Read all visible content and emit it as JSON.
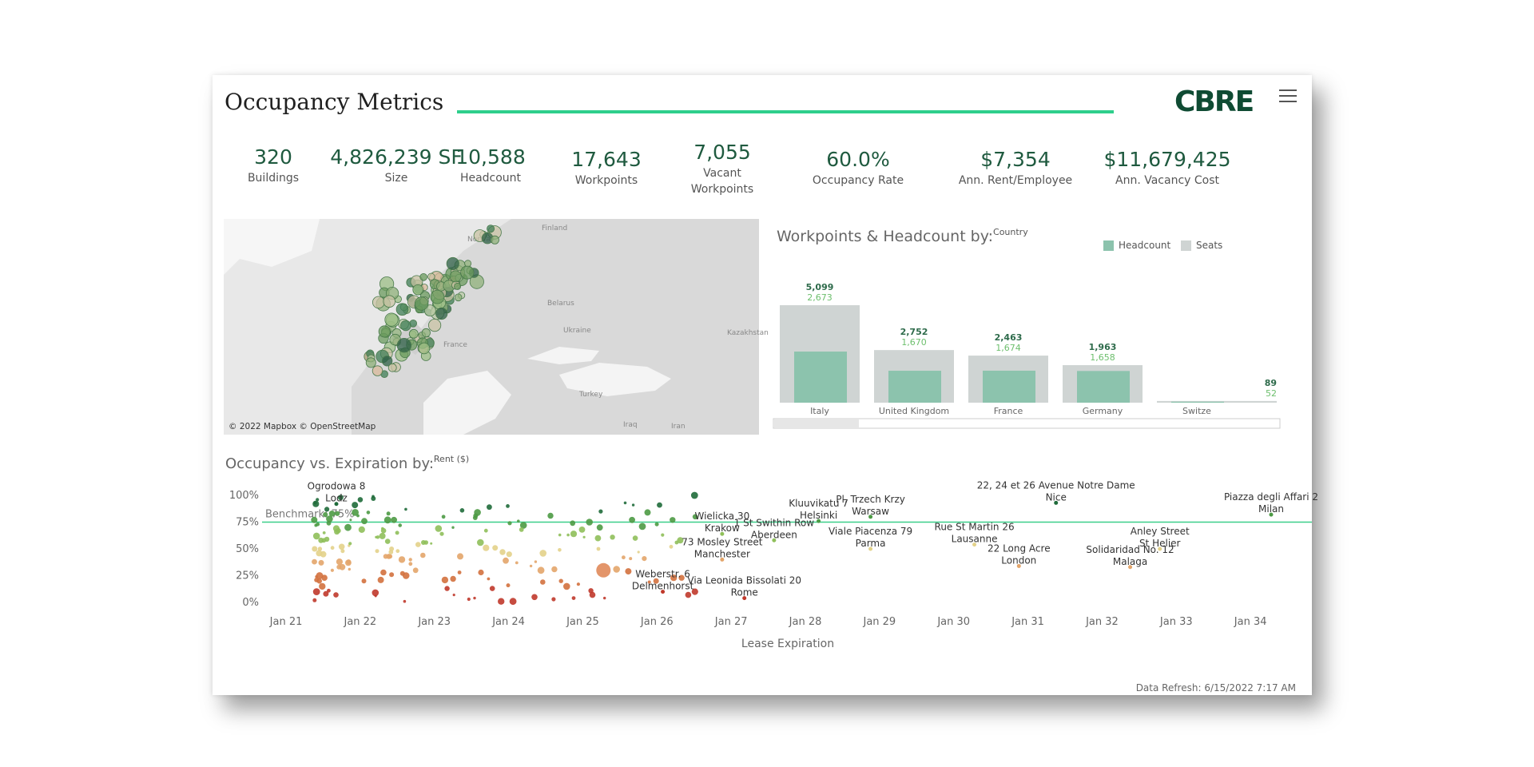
{
  "header": {
    "title": "Occupancy Metrics",
    "logo": "CBRE",
    "menu_icon": "hamburger-menu-icon"
  },
  "kpis": [
    {
      "value": "320",
      "label": "Buildings"
    },
    {
      "value": "4,826,239 SF",
      "label": "Size"
    },
    {
      "value": "10,588",
      "label": "Headcount"
    },
    {
      "value": "17,643",
      "label": "Workpoints"
    },
    {
      "value": "7,055",
      "label": "Vacant\nWorkpoints"
    },
    {
      "value": "60.0%",
      "label": "Occupancy Rate"
    },
    {
      "value": "$7,354",
      "label": "Ann. Rent/Employee"
    },
    {
      "value": "$11,679,425",
      "label": "Ann. Vacancy Cost"
    }
  ],
  "map": {
    "credit": "© 2022 Mapbox © OpenStreetMap",
    "place_labels": [
      "Norway",
      "Finland",
      "Belarus",
      "Ukraine",
      "France",
      "Kazakhstan",
      "Turkey",
      "Iraq",
      "Iran"
    ]
  },
  "colors": {
    "accent": "#2ecf8c",
    "headcount": "#8cc3ad",
    "seats": "#cfd4d3",
    "brand": "#0f4b33"
  },
  "chart_data": [
    {
      "type": "bar",
      "title": "Workpoints & Headcount by:",
      "title_dimension": "Country",
      "categories": [
        "Italy",
        "United Kingdom",
        "France",
        "Germany",
        "Switze"
      ],
      "series": [
        {
          "name": "Headcount",
          "values": [
            2673,
            1670,
            1674,
            1658,
            52
          ]
        },
        {
          "name": "Seats",
          "values": [
            5099,
            2752,
            2463,
            1963,
            89
          ]
        }
      ],
      "value_labels": {
        "Seats": [
          "5,099",
          "2,752",
          "2,463",
          "1,963",
          "89"
        ],
        "Headcount": [
          "2,673",
          "1,670",
          "1,674",
          "1,658",
          "52"
        ]
      },
      "legend": "top-right"
    },
    {
      "type": "scatter",
      "title": "Occupancy vs. Expiration by:",
      "title_dimension": "Rent ($)",
      "xlabel": "Lease Expiration",
      "x_ticks": [
        "Jan 21",
        "Jan 22",
        "Jan 23",
        "Jan 24",
        "Jan 25",
        "Jan 26",
        "Jan 27",
        "Jan 28",
        "Jan 29",
        "Jan 30",
        "Jan 31",
        "Jan 32",
        "Jan 33",
        "Jan 34"
      ],
      "y_ticks": [
        "100%",
        "75%",
        "50%",
        "25%",
        "0%"
      ],
      "ylim": [
        0,
        100
      ],
      "benchmark": {
        "label": "Benchmark: 75%",
        "value": 75
      },
      "annotations": [
        {
          "text": "Ogrodowa 8\nLodz",
          "x": 2021.7,
          "y": 92
        },
        {
          "text": "Wielicka 30\nKrakow",
          "x": 2026.9,
          "y": 64
        },
        {
          "text": "Kluuvikatu 7\nHelsinki",
          "x": 2028.2,
          "y": 76
        },
        {
          "text": "Pl. Trzech Krzy\nWarsaw",
          "x": 2028.9,
          "y": 80
        },
        {
          "text": "22, 24 et 26 Avenue Notre Dame\nNice",
          "x": 2031.4,
          "y": 93
        },
        {
          "text": "Piazza degli Affari 2\nMilan",
          "x": 2034.3,
          "y": 82
        },
        {
          "text": "1 St Swithin Row\nAberdeen",
          "x": 2027.6,
          "y": 58
        },
        {
          "text": "Viale Piacenza 79\nParma",
          "x": 2028.9,
          "y": 50
        },
        {
          "text": "Rue St Martin 26\nLausanne",
          "x": 2030.3,
          "y": 54
        },
        {
          "text": "Anley Street\nSt Helier",
          "x": 2032.8,
          "y": 50
        },
        {
          "text": "73 Mosley Street\nManchester",
          "x": 2026.9,
          "y": 40
        },
        {
          "text": "22 Long Acre\nLondon",
          "x": 2030.9,
          "y": 34
        },
        {
          "text": "Solidaridad No. 12\nMalaga",
          "x": 2032.4,
          "y": 33
        },
        {
          "text": "Weberstr. 6\nDelmenhorst",
          "x": 2026.1,
          "y": 10
        },
        {
          "text": "Via Leonida Bissolati 20\nRome",
          "x": 2027.2,
          "y": 4
        }
      ]
    }
  ],
  "footer": {
    "refresh": "Data Refresh: 6/15/2022 7:17 AM"
  }
}
